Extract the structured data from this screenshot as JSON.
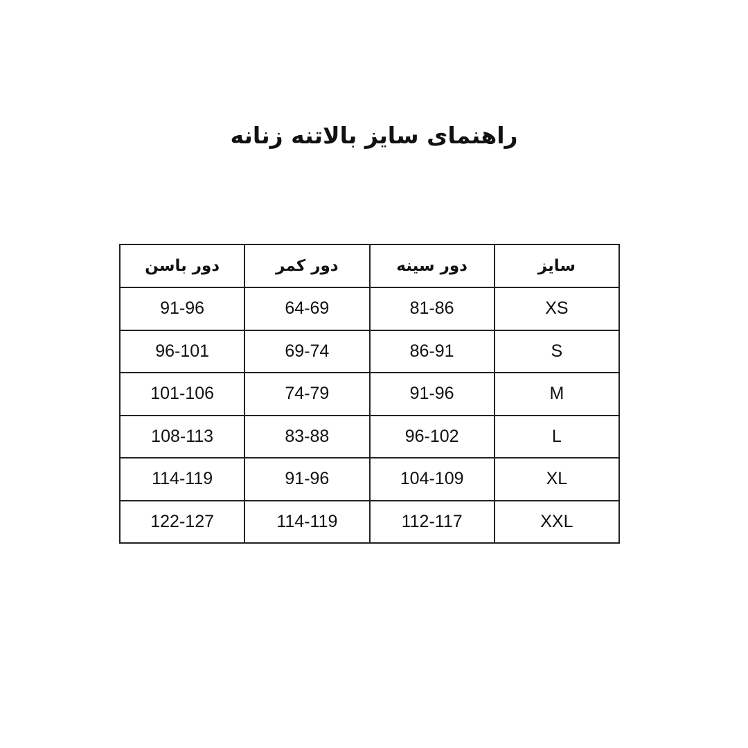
{
  "title": "راهنمای سایز بالاتنه زنانه",
  "table": {
    "headers": [
      "سایز",
      "دور سینه",
      "دور کمر",
      "دور باسن"
    ],
    "rows": [
      [
        "XS",
        "81-86",
        "64-69",
        "91-96"
      ],
      [
        "S",
        "86-91",
        "69-74",
        "96-101"
      ],
      [
        "M",
        "91-96",
        "74-79",
        "101-106"
      ],
      [
        "L",
        "96-102",
        "83-88",
        "108-113"
      ],
      [
        "XL",
        "104-109",
        "91-96",
        "114-119"
      ],
      [
        "XXL",
        "112-117",
        "114-119",
        "122-127"
      ]
    ]
  }
}
